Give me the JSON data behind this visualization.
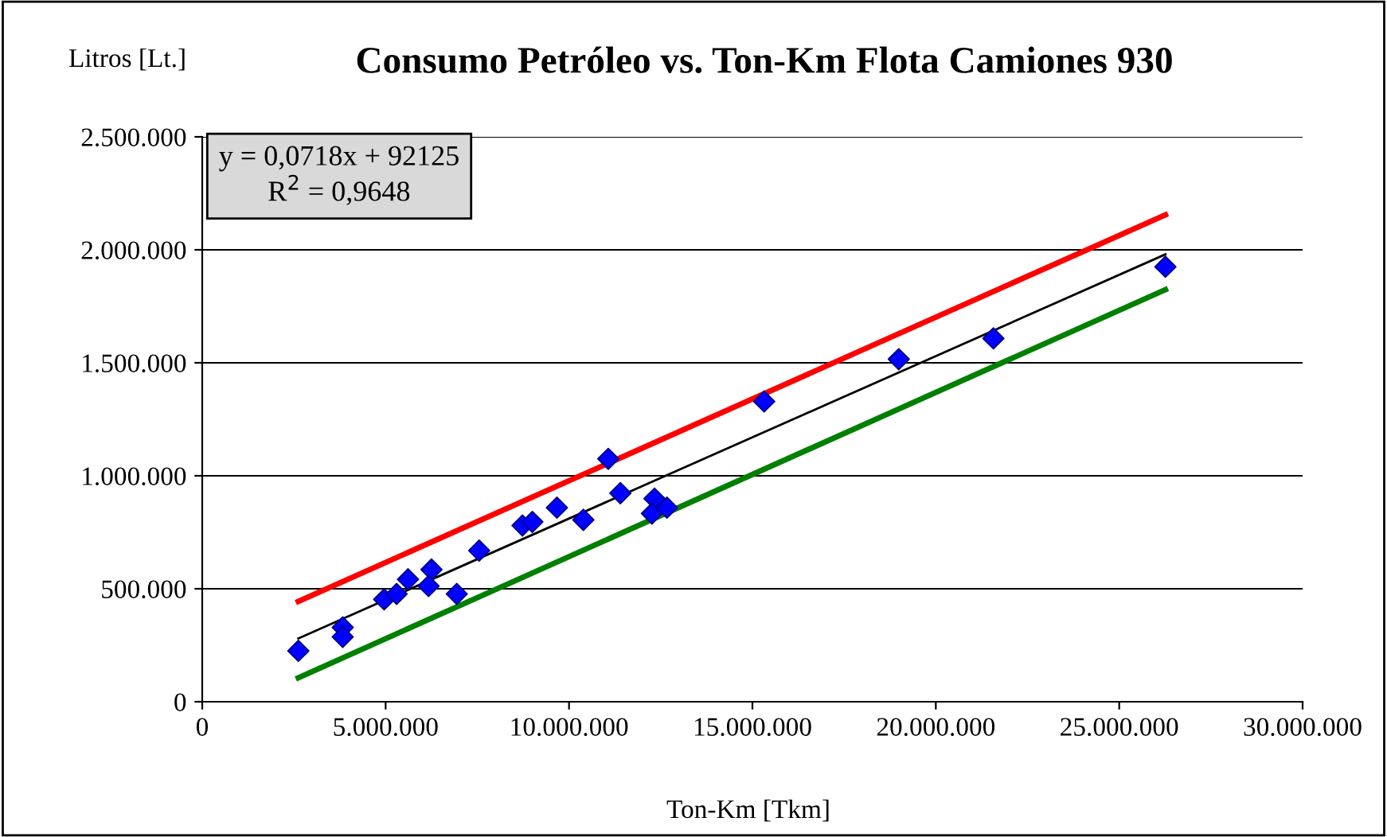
{
  "chart_data": {
    "type": "scatter",
    "title": "Consumo Petróleo vs. Ton-Km Flota Camiones 930",
    "xlabel": "Ton-Km [Tkm]",
    "ylabel": "Litros [Lt.]",
    "annotations": [
      "y = 0,0718x + 92125\nR$^{2}$ = 0,9648"
    ],
    "series": [
      {
        "color": "#0000ff",
        "x": [
          2620000,
          3830000,
          3830000,
          4960000,
          5300000,
          5610000,
          6250000,
          6170000,
          6940000,
          7550000,
          8730000,
          9000000,
          9670000,
          10390000,
          11070000,
          11400000,
          12330000,
          12260000,
          12670000,
          15320000,
          18990000,
          21570000,
          26260000
        ],
        "values": [
          225000,
          329000,
          287000,
          453000,
          477000,
          542000,
          585000,
          512000,
          477000,
          669000,
          780000,
          796000,
          859000,
          805000,
          1075000,
          923000,
          899000,
          833000,
          859000,
          1329000,
          1516000,
          1608000,
          1925000
        ]
      },
      {
        "type": "line",
        "marker": "none",
        "color": "#000000",
        "x": [
          2620000,
          26260000
        ],
        "values": [
          280000,
          1980000
        ]
      },
      {
        "type": "line",
        "marker": "none",
        "color": "#ff0000",
        "x": [
          2620000,
          26260000
        ],
        "values": [
          444000,
          2155000
        ]
      },
      {
        "type": "line",
        "marker": "none",
        "color": "#008000",
        "x": [
          2620000,
          26260000
        ],
        "values": [
          106000,
          1824000
        ]
      }
    ],
    "marker": "diamond",
    "grid": "y",
    "xlim": [
      0,
      30000000
    ],
    "xticks": [
      0,
      {
        "value": 5000000,
        "label": "5.000.000"
      },
      {
        "value": 10000000,
        "label": "10.000.000"
      },
      {
        "value": 15000000,
        "label": "15.000.000"
      },
      {
        "value": 20000000,
        "label": "20.000.000"
      },
      {
        "value": 25000000,
        "label": "25.000.000"
      },
      {
        "value": 30000000,
        "label": "30.000.000"
      }
    ],
    "ylim": [
      0,
      2500000
    ],
    "yticks": [
      0,
      {
        "value": 500000,
        "label": "500.000"
      },
      {
        "value": 1000000,
        "label": "1.000.000"
      },
      {
        "value": 1500000,
        "label": "1.500.000"
      },
      {
        "value": 2000000,
        "label": "2.000.000"
      },
      {
        "value": 2500000,
        "label": "2.500.000"
      }
    ]
  }
}
